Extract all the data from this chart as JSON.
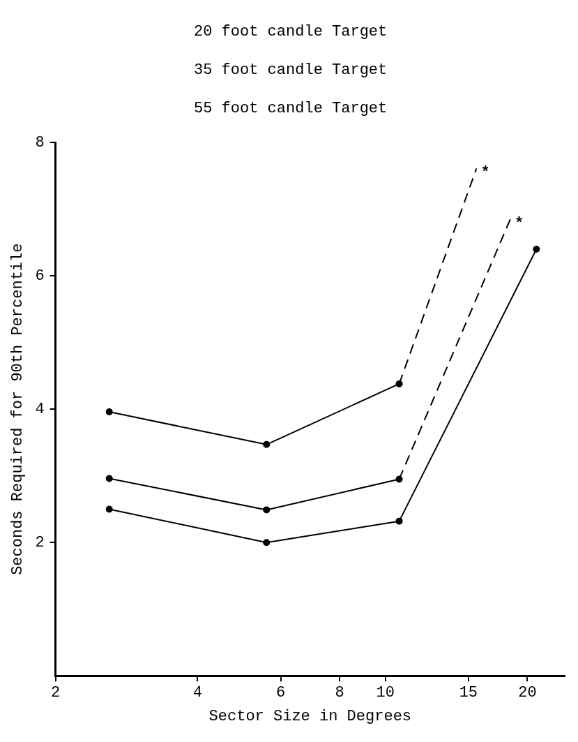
{
  "chart_data": {
    "type": "line",
    "xlabel": "Sector Size in Degrees",
    "ylabel": "Seconds Required for 90th Percentile",
    "annotations": [
      "20 foot candle Target",
      "35 foot candle Target",
      "55 foot candle Target",
      {
        "text": "*",
        "x": 15.6,
        "y": 7.61
      },
      {
        "text": "*",
        "x": 18.4,
        "y": 6.85
      }
    ],
    "log": "x",
    "xlim": [
      2,
      24
    ],
    "xticks": [
      2,
      4,
      6,
      8,
      10,
      15,
      20
    ],
    "ylim": [
      0,
      8
    ],
    "yticks": [
      2,
      4,
      6,
      8
    ],
    "grid": false,
    "legend": false,
    "series": [
      {
        "color": "#000000",
        "x": [
          2.6,
          5.6,
          10.7
        ],
        "values": [
          3.96,
          3.47,
          4.38
        ],
        "marker": "circle",
        "line_style": "solid"
      },
      {
        "color": "#000000",
        "x": [
          10.7,
          15.6
        ],
        "values": [
          4.38,
          7.61
        ],
        "marker": "none",
        "line_style": "dashed"
      },
      {
        "color": "#000000",
        "x": [
          2.6,
          5.6,
          10.7
        ],
        "values": [
          2.96,
          2.49,
          2.95
        ],
        "marker": "circle",
        "line_style": "solid"
      },
      {
        "color": "#000000",
        "x": [
          10.7,
          18.4
        ],
        "values": [
          2.95,
          6.85
        ],
        "marker": "none",
        "line_style": "dashed"
      },
      {
        "color": "#000000",
        "x": [
          2.6,
          5.6,
          10.7,
          20.9
        ],
        "values": [
          2.5,
          2.0,
          2.32,
          6.4
        ],
        "marker": "circle",
        "line_style": "solid"
      }
    ]
  }
}
